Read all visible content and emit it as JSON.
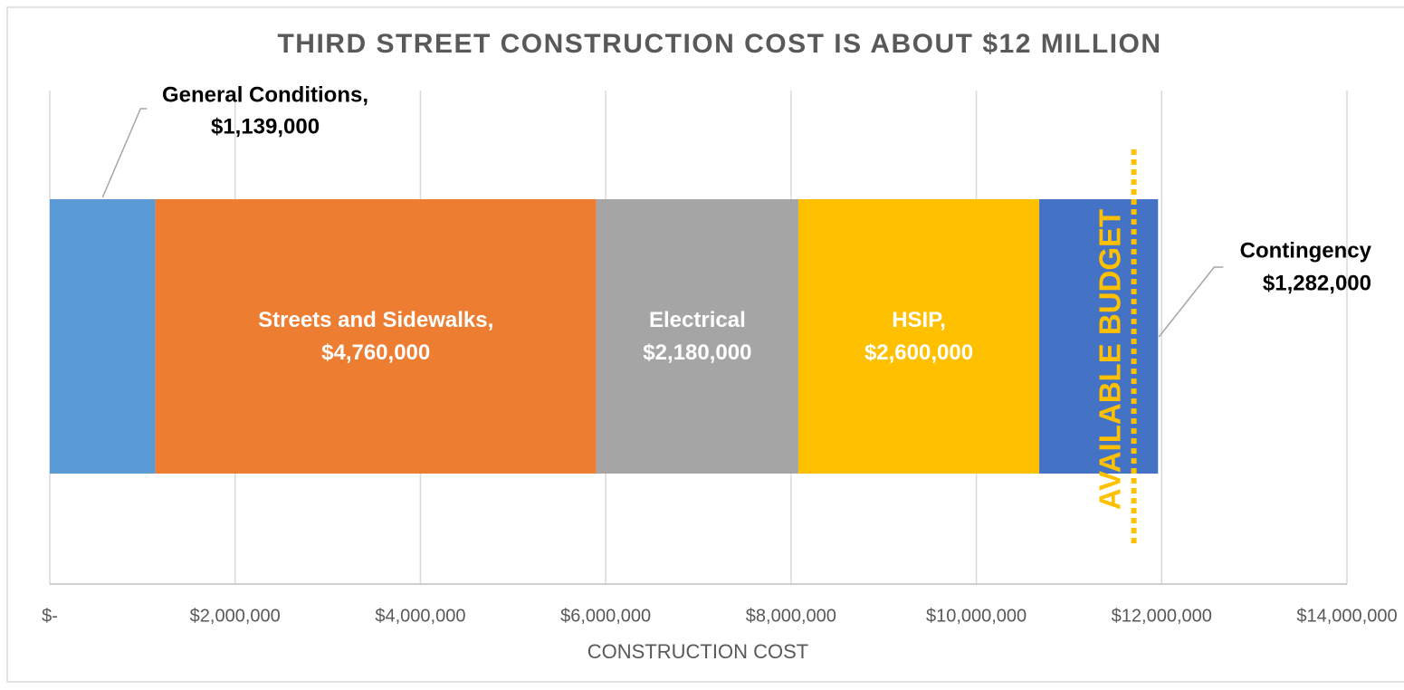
{
  "chart_data": {
    "type": "stacked-barh",
    "title": "THIRD STREET CONSTRUCTION COST IS ABOUT $12 MILLION",
    "xlabel": "CONSTRUCTION COST",
    "series": [
      {
        "name": "General Conditions,",
        "color": "#5b9bd5",
        "values": [
          1139000
        ],
        "value_labels": [
          "$1,139,000"
        ]
      },
      {
        "name": "Streets and Sidewalks,",
        "color": "#ed7d31",
        "values": [
          4760000
        ],
        "value_labels": [
          "$4,760,000"
        ]
      },
      {
        "name": "Electrical",
        "color": "#a5a5a5",
        "values": [
          2180000
        ],
        "value_labels": [
          "$2,180,000"
        ]
      },
      {
        "name": "HSIP,",
        "color": "#ffc000",
        "values": [
          2600000
        ],
        "value_labels": [
          "$2,600,000"
        ]
      },
      {
        "name": "Contingency",
        "color": "#4472c4",
        "values": [
          1282000
        ],
        "value_labels": [
          "$1,282,000"
        ]
      }
    ],
    "xlim": [
      0,
      14000000
    ],
    "xticks": [
      {
        "value": 0,
        "label": "$-"
      },
      {
        "value": 2000000,
        "label": "$2,000,000"
      },
      {
        "value": 4000000,
        "label": "$4,000,000"
      },
      {
        "value": 6000000,
        "label": "$6,000,000"
      },
      {
        "value": 8000000,
        "label": "$8,000,000"
      },
      {
        "value": 10000000,
        "label": "$10,000,000"
      },
      {
        "value": 12000000,
        "label": "$12,000,000"
      },
      {
        "value": 14000000,
        "label": "$14,000,000"
      }
    ],
    "grid": true,
    "annotations": [
      {
        "text": "AVAILABLE BUDGET",
        "value": 11700000,
        "color": "#ffc000"
      }
    ]
  }
}
